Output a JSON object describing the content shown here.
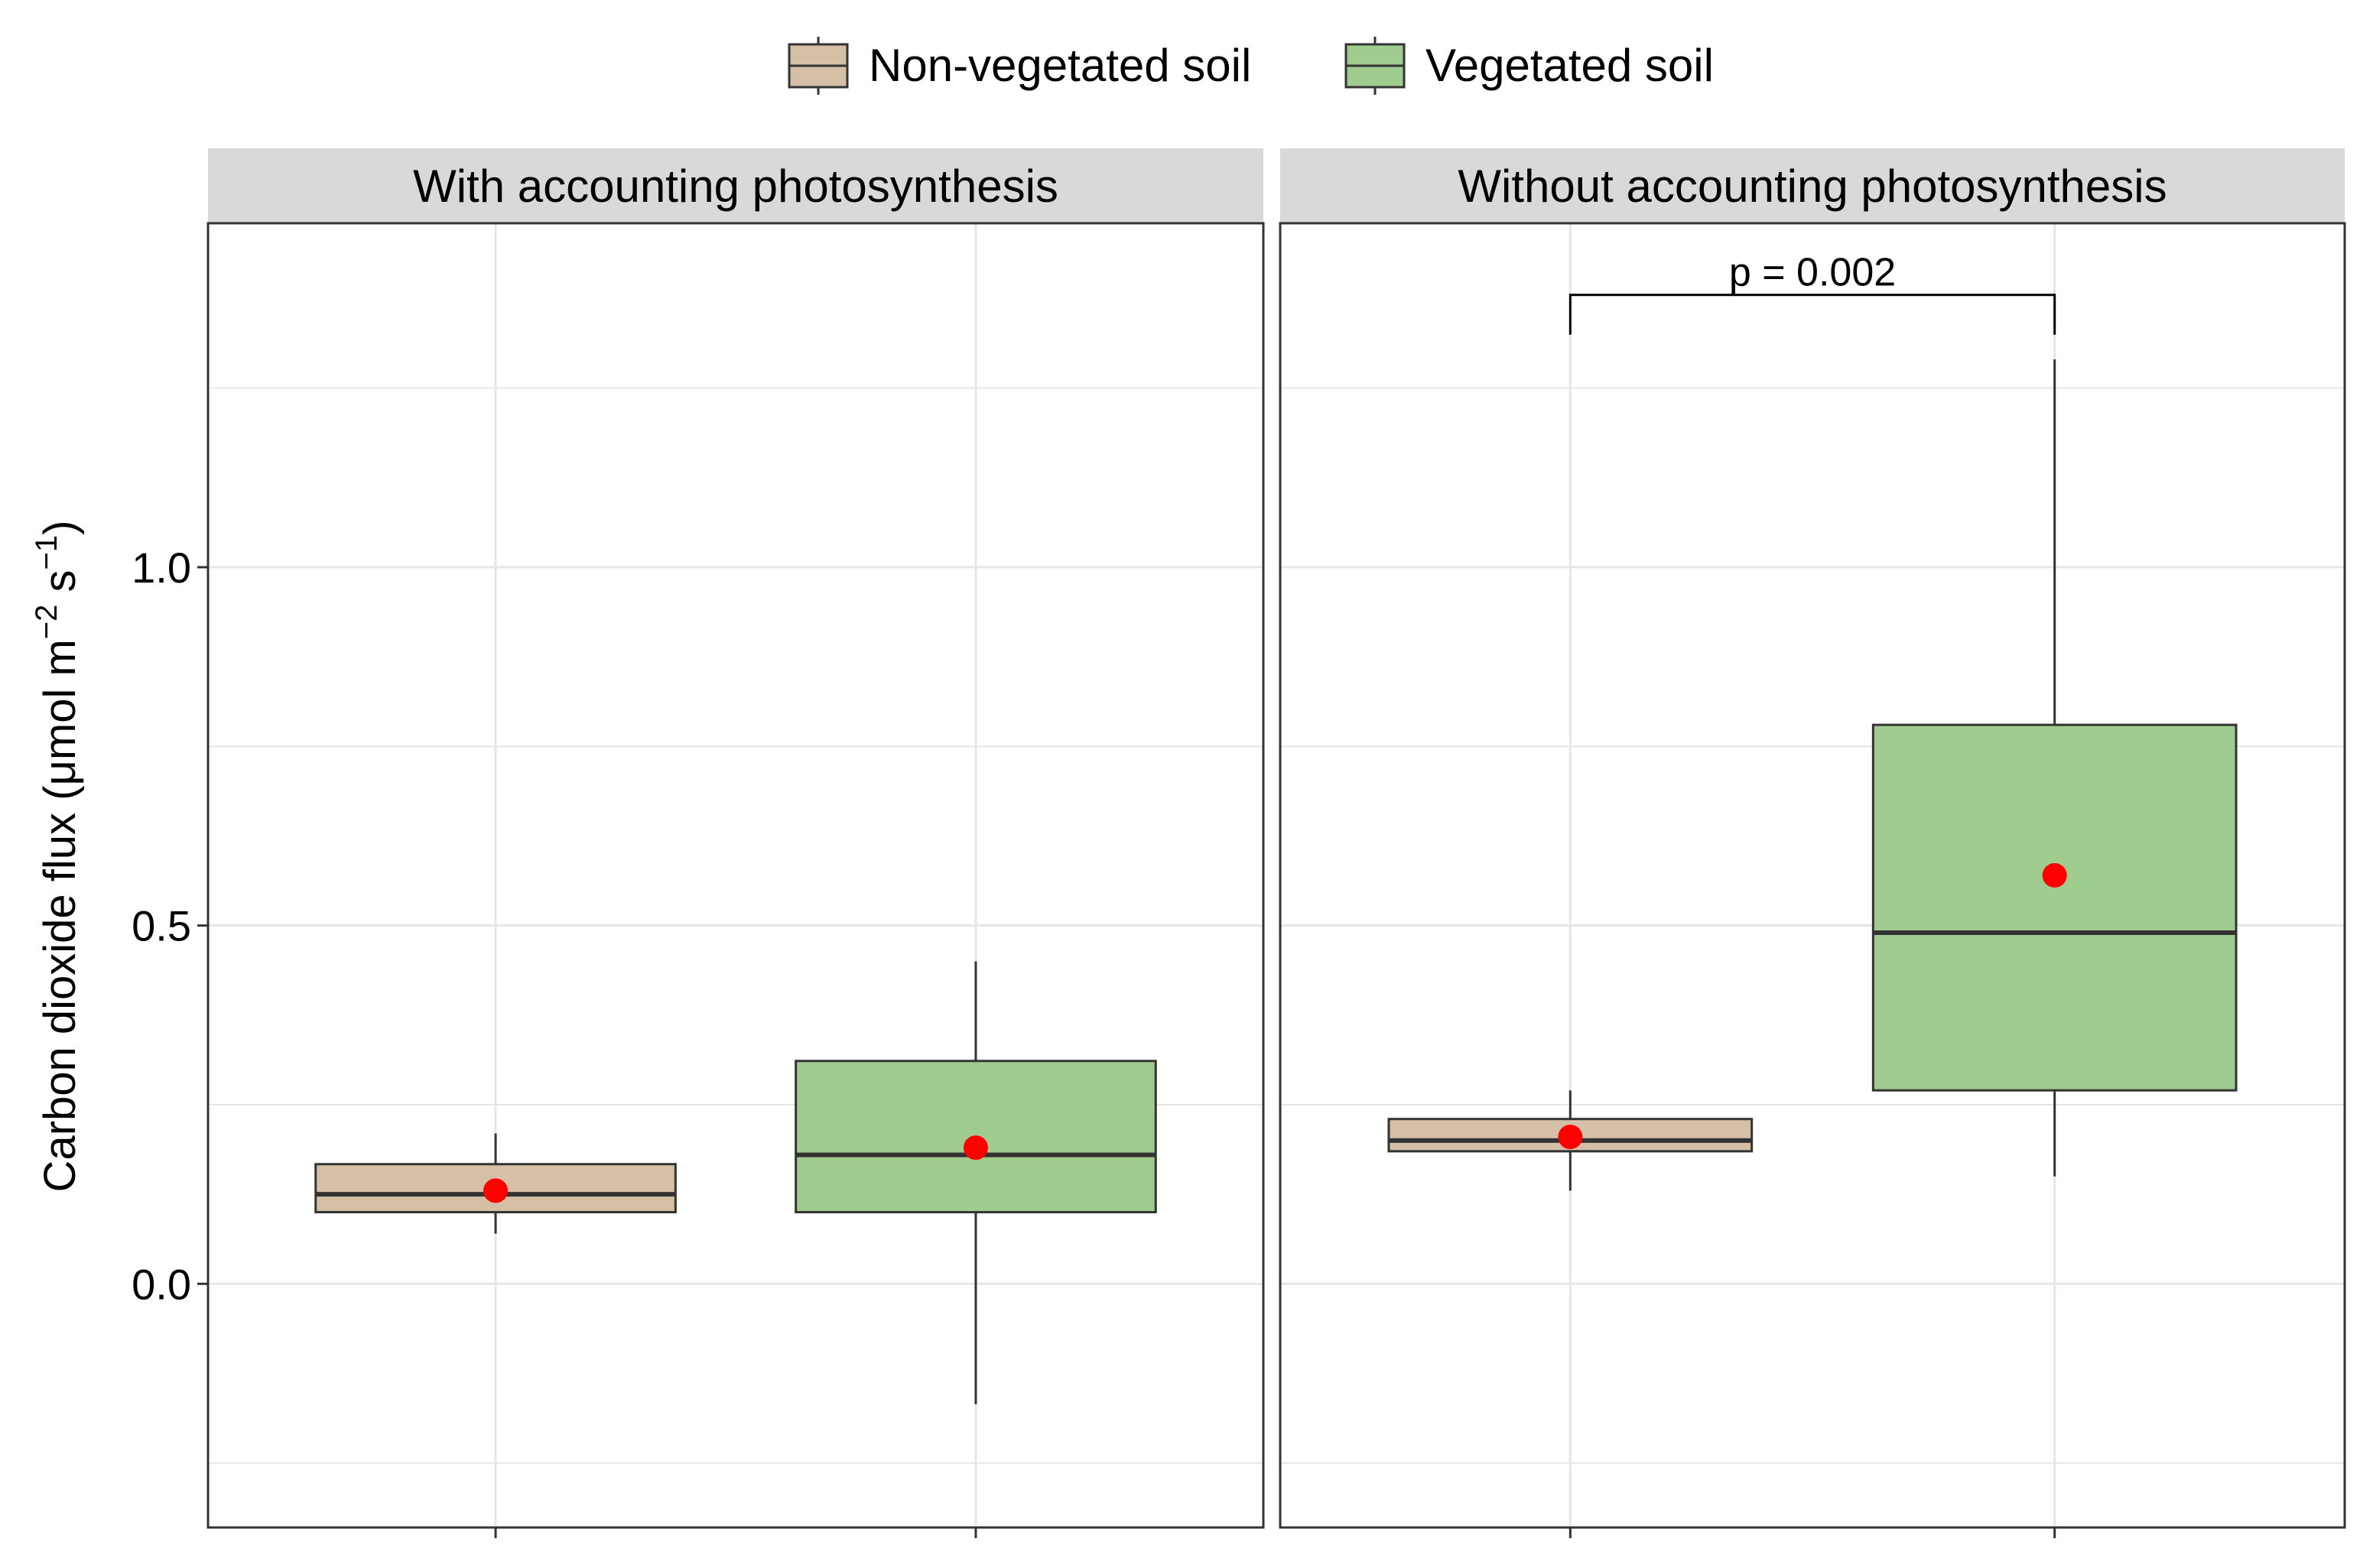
{
  "legend": {
    "position": "top",
    "items": [
      {
        "label": "Non-vegetated soil",
        "color": "#d5bfa6"
      },
      {
        "label": "Vegetated soil",
        "color": "#a0cc8f"
      }
    ]
  },
  "y_axis": {
    "label_main": "Carbon dioxide flux (μmol m",
    "sup1": "−2",
    "label_mid": " s",
    "sup2": "−1",
    "label_end": ")",
    "ticks": [
      "0.0",
      "0.5",
      "1.0"
    ]
  },
  "colors": {
    "strip_bg": "#d9d9d9",
    "grid": "#e6e6e6",
    "box_outline": "#333333",
    "median": "#333333",
    "mean_point": "#ff0000",
    "frame": "#333333"
  },
  "chart_data": {
    "type": "box",
    "ylim": [
      -0.34,
      1.48
    ],
    "grid": true,
    "y_ticks": [
      0.0,
      0.5,
      1.0
    ],
    "y_minor": [
      -0.25,
      0.25,
      0.75,
      1.25
    ],
    "panels": [
      {
        "title": "With accounting photosynthesis",
        "boxes": [
          {
            "group": "Non-vegetated soil",
            "whisker_low": 0.07,
            "q1": 0.1,
            "median": 0.125,
            "q3": 0.167,
            "whisker_high": 0.21,
            "mean": 0.13
          },
          {
            "group": "Vegetated soil",
            "whisker_low": -0.168,
            "q1": 0.1,
            "median": 0.18,
            "q3": 0.311,
            "whisker_high": 0.45,
            "mean": 0.19
          }
        ],
        "annotation": null
      },
      {
        "title": "Without accounting photosynthesis",
        "boxes": [
          {
            "group": "Non-vegetated soil",
            "whisker_low": 0.13,
            "q1": 0.185,
            "median": 0.2,
            "q3": 0.23,
            "whisker_high": 0.27,
            "mean": 0.205
          },
          {
            "group": "Vegetated soil",
            "whisker_low": 0.15,
            "q1": 0.27,
            "median": 0.49,
            "q3": 0.78,
            "whisker_high": 1.29,
            "mean": 0.57
          }
        ],
        "annotation": {
          "text": "p = 0.002",
          "y": 1.38
        }
      }
    ]
  }
}
